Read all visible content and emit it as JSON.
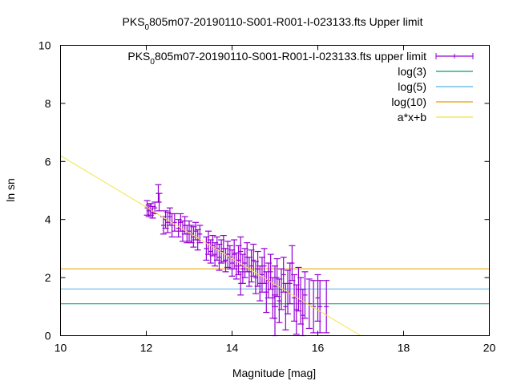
{
  "chart_data": {
    "type": "scatter",
    "title": "PKS_0805m07-20190110-S001-R001-I-023133.fts Upper limit",
    "title_parts": {
      "pre": "PKS",
      "sub": "0",
      "post": "805m07-20190110-S001-R001-I-023133.fts Upper limit"
    },
    "xlabel": "Magnitude [mag]",
    "ylabel": "ln sn",
    "xlim": [
      10,
      20
    ],
    "ylim": [
      0,
      10
    ],
    "xticks": [
      "10",
      "12",
      "14",
      "16",
      "18",
      "20"
    ],
    "yticks": [
      "0",
      "2",
      "4",
      "6",
      "8",
      "10"
    ],
    "legend_placement": "top-right",
    "legend": [
      {
        "pre": "PKS",
        "sub": "0",
        "post": "805m07-20190110-S001-R001-I-023133.fts upper limit",
        "color": "#9400d3"
      },
      {
        "label": "log(3)",
        "color": "#009e73"
      },
      {
        "label": "log(5)",
        "color": "#56b4e9"
      },
      {
        "label": "log(10)",
        "color": "#e69f00"
      },
      {
        "label": "a*x+b",
        "color": "#f0e442"
      }
    ],
    "hlines": [
      1.0986,
      1.6094,
      2.3026
    ],
    "fit": {
      "a": -0.886,
      "b": 15.06
    },
    "points": [
      [
        12.02,
        4.4,
        0.25
      ],
      [
        12.06,
        4.3,
        0.2
      ],
      [
        12.1,
        4.35,
        0.2
      ],
      [
        12.15,
        4.25,
        0.2
      ],
      [
        12.2,
        4.4,
        0.2
      ],
      [
        12.28,
        4.9,
        0.3
      ],
      [
        12.3,
        4.6,
        0.3
      ],
      [
        12.4,
        3.8,
        0.3
      ],
      [
        12.45,
        4.0,
        0.3
      ],
      [
        12.5,
        3.9,
        0.35
      ],
      [
        12.55,
        4.1,
        0.3
      ],
      [
        12.6,
        3.8,
        0.4
      ],
      [
        12.66,
        3.9,
        0.3
      ],
      [
        12.75,
        3.7,
        0.3
      ],
      [
        12.8,
        3.9,
        0.3
      ],
      [
        12.85,
        3.6,
        0.35
      ],
      [
        12.9,
        3.8,
        0.3
      ],
      [
        12.95,
        3.5,
        0.3
      ],
      [
        13.0,
        3.6,
        0.35
      ],
      [
        13.05,
        3.5,
        0.3
      ],
      [
        13.1,
        3.4,
        0.35
      ],
      [
        13.15,
        3.6,
        0.3
      ],
      [
        13.2,
        3.3,
        0.35
      ],
      [
        13.25,
        3.5,
        0.3
      ],
      [
        13.4,
        3.0,
        0.4
      ],
      [
        13.45,
        3.2,
        0.4
      ],
      [
        13.5,
        2.9,
        0.4
      ],
      [
        13.55,
        3.1,
        0.35
      ],
      [
        13.6,
        2.8,
        0.4
      ],
      [
        13.65,
        3.0,
        0.4
      ],
      [
        13.7,
        2.7,
        0.45
      ],
      [
        13.75,
        2.9,
        0.4
      ],
      [
        13.8,
        3.0,
        0.45
      ],
      [
        13.85,
        2.6,
        0.4
      ],
      [
        13.9,
        2.8,
        0.45
      ],
      [
        13.95,
        2.7,
        0.4
      ],
      [
        14.0,
        2.5,
        0.45
      ],
      [
        14.05,
        2.8,
        0.5
      ],
      [
        14.1,
        2.4,
        0.45
      ],
      [
        14.15,
        2.6,
        0.5
      ],
      [
        14.2,
        2.9,
        0.5
      ],
      [
        14.25,
        2.3,
        0.5
      ],
      [
        14.3,
        2.5,
        0.5
      ],
      [
        14.35,
        2.7,
        0.5
      ],
      [
        14.4,
        2.2,
        0.5
      ],
      [
        14.45,
        2.4,
        0.55
      ],
      [
        14.5,
        2.6,
        0.55
      ],
      [
        14.55,
        2.0,
        0.55
      ],
      [
        14.6,
        2.3,
        0.6
      ],
      [
        14.65,
        1.8,
        0.6
      ],
      [
        14.7,
        2.1,
        0.6
      ],
      [
        14.75,
        2.4,
        0.6
      ],
      [
        14.8,
        1.5,
        0.7
      ],
      [
        14.85,
        1.9,
        0.6
      ],
      [
        14.9,
        2.2,
        0.6
      ],
      [
        14.95,
        1.3,
        0.7
      ],
      [
        15.0,
        1.7,
        0.7
      ],
      [
        15.05,
        2.0,
        0.65
      ],
      [
        15.1,
        1.2,
        0.75
      ],
      [
        15.15,
        1.6,
        0.7
      ],
      [
        15.2,
        2.1,
        0.6
      ],
      [
        15.25,
        1.0,
        0.8
      ],
      [
        15.3,
        1.5,
        0.75
      ],
      [
        15.35,
        1.8,
        0.7
      ],
      [
        15.4,
        2.5,
        0.6
      ],
      [
        15.45,
        1.3,
        0.8
      ],
      [
        15.5,
        0.9,
        0.85
      ],
      [
        15.55,
        1.6,
        0.75
      ],
      [
        15.6,
        1.2,
        0.8
      ],
      [
        15.65,
        0.7,
        0.9
      ],
      [
        15.7,
        1.4,
        0.8
      ],
      [
        15.8,
        1.1,
        0.85
      ],
      [
        15.9,
        1.0,
        0.9
      ],
      [
        16.0,
        1.3,
        0.8
      ],
      [
        16.05,
        1.0,
        0.9
      ],
      [
        16.2,
        1.0,
        0.9
      ],
      [
        14.2,
        1.8,
        0.4
      ],
      [
        15.0,
        0.6,
        0.8
      ]
    ]
  }
}
